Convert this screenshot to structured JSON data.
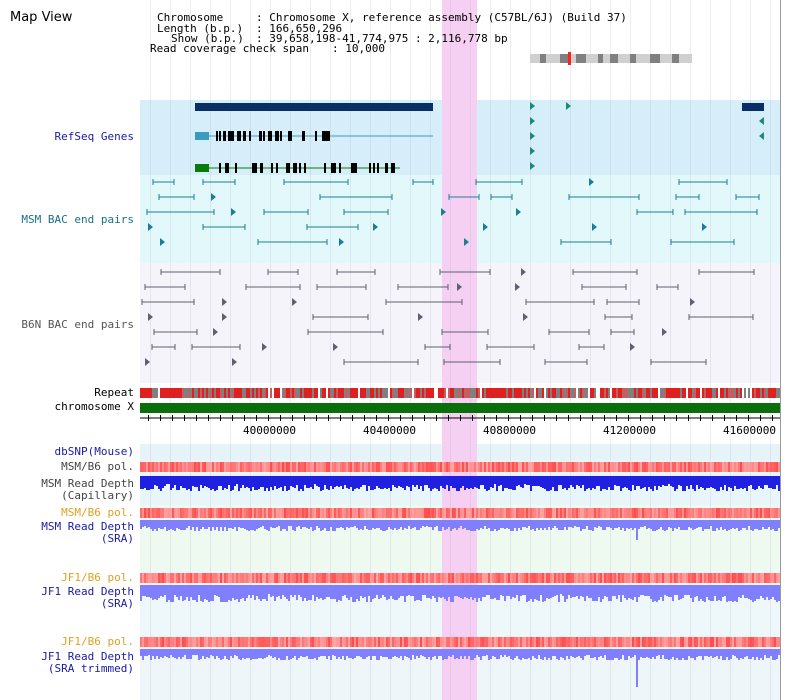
{
  "title": "Map View",
  "info": {
    "chromosome_key": "Chromosome",
    "chromosome_val": ": Chromosome X, reference assembly (C57BL/6J) (Build 37)",
    "length_key": "Length (b.p.)",
    "length_val": ": 166,650,296",
    "show_key": "Show (b.p.)",
    "show_val": ": 39,658,198-41,774,975 : 2,116,778 bp",
    "coverage_key": "Read coverage check span",
    "coverage_val": ": 10,000"
  },
  "tracks": {
    "refseq": "RefSeq Genes",
    "msm_bac": "MSM BAC end pairs",
    "b6n_bac": "B6N BAC end pairs",
    "repeat": "Repeat",
    "chromosome": "chromosome X",
    "dbsnp": "dbSNP(Mouse)",
    "msm_pol_1": "MSM/B6 pol.",
    "msm_depth_cap_1": "MSM Read Depth",
    "msm_depth_cap_2": "(Capillary)",
    "msm_pol_2": "MSM/B6 pol.",
    "msm_depth_sra_1": "MSM Read Depth",
    "msm_depth_sra_2": "(SRA)",
    "jf1_pol_1": "JF1/B6 pol.",
    "jf1_depth_sra_1": "JF1 Read Depth",
    "jf1_depth_sra_2": "(SRA)",
    "jf1_pol_2": "JF1/B6 pol.",
    "jf1_depth_trim_1": "JF1 Read Depth",
    "jf1_depth_trim_2": "(SRA trimmed)"
  },
  "ruler": {
    "ticks": [
      "40000000",
      "40400000",
      "40800000",
      "41200000",
      "41600000"
    ]
  },
  "colors": {
    "refseq_bg": "#d6eefa",
    "msm_bg": "#e2f8fa",
    "b6n_bg": "#f4f4fa",
    "highlight": "#f5d0f2",
    "label_blue": "#1a1aa6",
    "label_teal": "#1a6f86",
    "label_orange": "#e0a020",
    "label_gray": "#333333",
    "chrom_green": "#0a6e0a",
    "gene_navy": "#0a2f66",
    "depth_blue": "#2020e0",
    "depth_light": "#8080ff"
  }
}
